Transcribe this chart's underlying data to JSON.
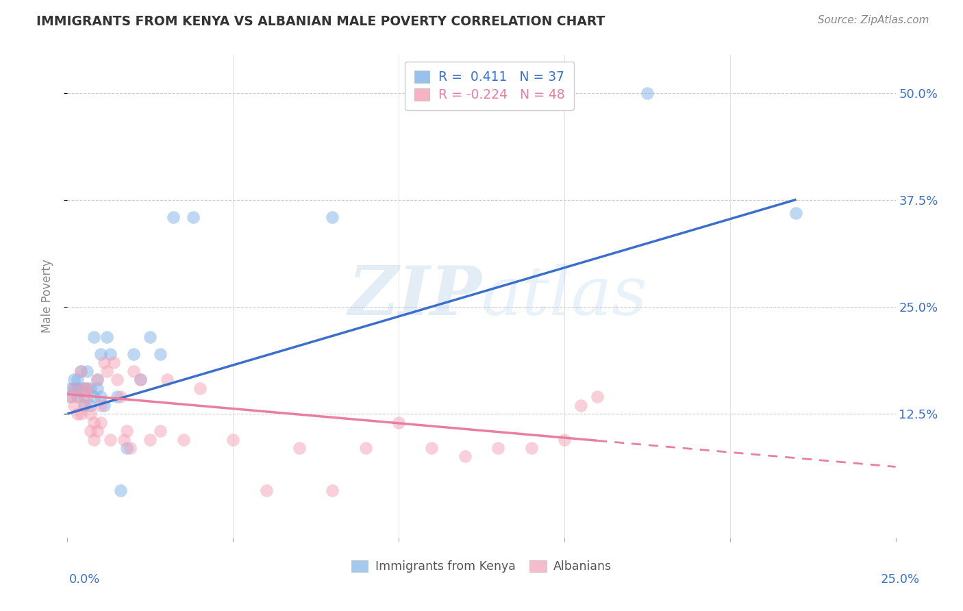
{
  "title": "IMMIGRANTS FROM KENYA VS ALBANIAN MALE POVERTY CORRELATION CHART",
  "source": "Source: ZipAtlas.com",
  "ylabel": "Male Poverty",
  "ytick_labels": [
    "12.5%",
    "25.0%",
    "37.5%",
    "50.0%"
  ],
  "ytick_values": [
    0.125,
    0.25,
    0.375,
    0.5
  ],
  "xlim": [
    0.0,
    0.25
  ],
  "ylim": [
    -0.02,
    0.545
  ],
  "kenya_color": "#7EB3E8",
  "albanian_color": "#F4A0B5",
  "kenya_line_color": "#3B6FCC",
  "albanian_line_color": "#E87FA0",
  "watermark_top": "ZIP",
  "watermark_bottom": "atlas",
  "kenya_x": [
    0.001,
    0.001,
    0.002,
    0.002,
    0.003,
    0.003,
    0.003,
    0.004,
    0.004,
    0.005,
    0.005,
    0.005,
    0.006,
    0.006,
    0.007,
    0.007,
    0.008,
    0.008,
    0.009,
    0.009,
    0.01,
    0.01,
    0.011,
    0.012,
    0.013,
    0.015,
    0.016,
    0.018,
    0.02,
    0.022,
    0.025,
    0.028,
    0.032,
    0.038,
    0.08,
    0.175,
    0.22
  ],
  "kenya_y": [
    0.145,
    0.155,
    0.155,
    0.165,
    0.155,
    0.165,
    0.145,
    0.155,
    0.175,
    0.135,
    0.145,
    0.155,
    0.155,
    0.175,
    0.135,
    0.155,
    0.145,
    0.215,
    0.155,
    0.165,
    0.145,
    0.195,
    0.135,
    0.215,
    0.195,
    0.145,
    0.035,
    0.085,
    0.195,
    0.165,
    0.215,
    0.195,
    0.355,
    0.355,
    0.355,
    0.5,
    0.36
  ],
  "albanian_x": [
    0.001,
    0.002,
    0.002,
    0.003,
    0.003,
    0.004,
    0.004,
    0.005,
    0.005,
    0.006,
    0.006,
    0.007,
    0.007,
    0.008,
    0.008,
    0.009,
    0.009,
    0.01,
    0.01,
    0.011,
    0.012,
    0.013,
    0.014,
    0.015,
    0.016,
    0.017,
    0.018,
    0.019,
    0.02,
    0.022,
    0.025,
    0.028,
    0.03,
    0.035,
    0.04,
    0.05,
    0.06,
    0.07,
    0.08,
    0.09,
    0.1,
    0.11,
    0.12,
    0.13,
    0.14,
    0.15,
    0.155,
    0.16
  ],
  "albanian_y": [
    0.145,
    0.135,
    0.155,
    0.125,
    0.145,
    0.175,
    0.125,
    0.135,
    0.155,
    0.145,
    0.155,
    0.105,
    0.125,
    0.095,
    0.115,
    0.165,
    0.105,
    0.135,
    0.115,
    0.185,
    0.175,
    0.095,
    0.185,
    0.165,
    0.145,
    0.095,
    0.105,
    0.085,
    0.175,
    0.165,
    0.095,
    0.105,
    0.165,
    0.095,
    0.155,
    0.095,
    0.035,
    0.085,
    0.035,
    0.085,
    0.115,
    0.085,
    0.075,
    0.085,
    0.085,
    0.095,
    0.135,
    0.145
  ]
}
